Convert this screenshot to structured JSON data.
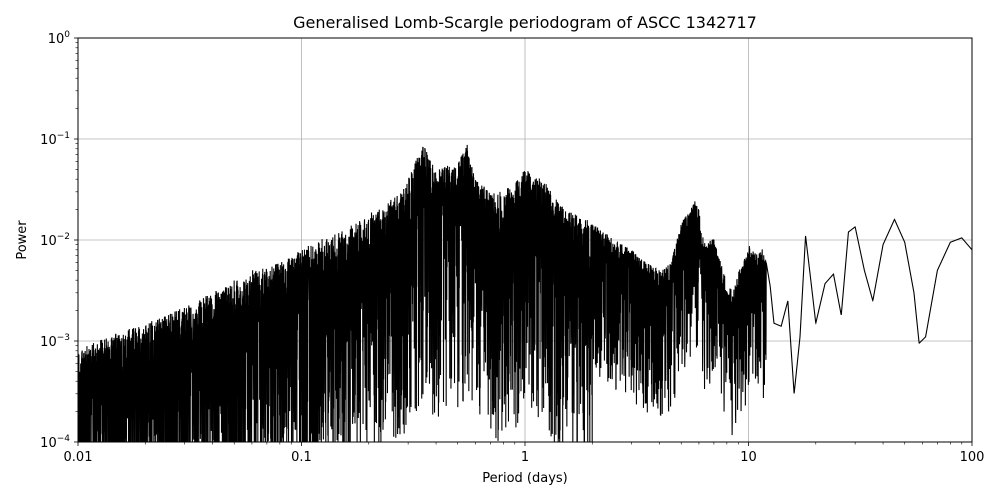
{
  "chart_data": {
    "type": "line",
    "title": "Generalised Lomb-Scargle periodogram of ASCC 1342717",
    "xlabel": "Period (days)",
    "ylabel": "Power",
    "xscale": "log",
    "yscale": "log",
    "xlim": [
      0.01,
      100
    ],
    "ylim": [
      0.0001,
      1
    ],
    "grid": true,
    "line_color": "#000000",
    "x_ticks": [
      {
        "value": 0.01,
        "label": "0.01"
      },
      {
        "value": 0.1,
        "label": "0.1"
      },
      {
        "value": 1,
        "label": "1"
      },
      {
        "value": 10,
        "label": "10"
      },
      {
        "value": 100,
        "label": "100"
      }
    ],
    "y_ticks": [
      {
        "value": 0.0001,
        "base": "10",
        "exp": "−4"
      },
      {
        "value": 0.001,
        "base": "10",
        "exp": "−3"
      },
      {
        "value": 0.01,
        "base": "10",
        "exp": "−2"
      },
      {
        "value": 0.1,
        "base": "10",
        "exp": "−1"
      },
      {
        "value": 1,
        "base": "10",
        "exp": "0"
      }
    ],
    "series": [
      {
        "x": [
          0.01,
          0.012,
          0.015,
          0.02,
          0.025,
          0.03,
          0.04,
          0.05,
          0.06,
          0.07,
          0.08,
          0.09,
          0.1,
          0.12,
          0.15,
          0.2,
          0.25,
          0.28,
          0.3,
          0.35,
          0.4,
          0.5,
          0.55,
          0.6,
          0.7,
          0.8,
          1.0,
          1.2,
          1.5,
          2.0,
          2.5,
          3.0,
          3.5,
          4.0,
          4.5,
          5.0,
          5.5,
          5.9,
          6.2,
          6.5,
          7.0,
          7.5,
          8.0,
          8.5,
          9.0,
          9.5,
          10,
          10.5,
          11,
          11.5,
          12,
          12.5,
          13,
          14,
          15,
          16,
          17,
          18,
          19,
          20,
          22,
          24,
          26,
          28,
          30,
          33,
          36,
          40,
          45,
          50,
          55,
          58,
          62,
          70,
          80,
          90,
          100
        ],
        "envelope": [
          0.0008,
          0.001,
          0.0012,
          0.0015,
          0.0018,
          0.0022,
          0.003,
          0.004,
          0.005,
          0.0055,
          0.006,
          0.007,
          0.008,
          0.01,
          0.012,
          0.018,
          0.025,
          0.03,
          0.04,
          0.09,
          0.05,
          0.06,
          0.09,
          0.04,
          0.03,
          0.03,
          0.05,
          0.04,
          0.02,
          0.015,
          0.01,
          0.008,
          0.006,
          0.005,
          0.006,
          0.015,
          0.02,
          0.027,
          0.012,
          0.009,
          0.011,
          0.006,
          0.004,
          0.003,
          0.005,
          0.006,
          0.009,
          0.008,
          0.0075,
          0.0085,
          0.006,
          0.0035,
          0.0015,
          0.0014,
          0.0025,
          0.0003,
          0.0011,
          0.011,
          0.004,
          0.0015,
          0.0037,
          0.0046,
          0.0018,
          0.012,
          0.0135,
          0.005,
          0.0025,
          0.009,
          0.016,
          0.0095,
          0.003,
          0.00095,
          0.0011,
          0.005,
          0.0095,
          0.0105,
          0.008
        ]
      }
    ]
  }
}
